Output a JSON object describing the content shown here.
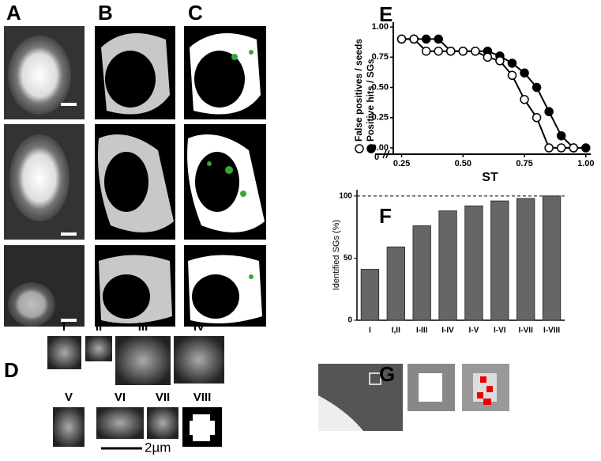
{
  "panel_labels": [
    "A",
    "B",
    "C",
    "D",
    "E",
    "F",
    "G"
  ],
  "granule_labels": [
    "I",
    "II",
    "III",
    "IV",
    "V",
    "VI",
    "VII",
    "VIII"
  ],
  "scale_bar": "2µm",
  "chart_data": [
    {
      "type": "line",
      "xlabel": "ST",
      "x": [
        0.25,
        0.3,
        0.35,
        0.4,
        0.45,
        0.5,
        0.55,
        0.6,
        0.65,
        0.7,
        0.75,
        0.8,
        0.85,
        0.9,
        0.95,
        1.0
      ],
      "series": [
        {
          "name": "Positive hits / SGs",
          "color": "#000000",
          "marker": "filled",
          "values": [
            0.9,
            0.9,
            0.9,
            0.9,
            0.8,
            0.8,
            0.8,
            0.8,
            0.76,
            0.7,
            0.62,
            0.5,
            0.3,
            0.1,
            0,
            0
          ]
        },
        {
          "name": "False positives / seeds",
          "color": "#000000",
          "marker": "open",
          "values": [
            0.9,
            0.9,
            0.8,
            0.8,
            0.8,
            0.8,
            0.8,
            0.75,
            0.72,
            0.6,
            0.4,
            0.25,
            0,
            0,
            0,
            null
          ]
        }
      ],
      "xlim": [
        0.2,
        1.02
      ],
      "ylim": [
        0,
        1.04
      ],
      "xticks": [
        0.25,
        {
          "value": 0.5,
          "label": "0.50"
        },
        0.75,
        {
          "value": 1,
          "label": "1.00"
        }
      ],
      "yticks": [
        {
          "value": 0,
          "label": "0.00"
        },
        0.25,
        {
          "value": 0.5,
          "label": "0.50"
        },
        0.75,
        {
          "value": 1,
          "label": "1.00"
        }
      ],
      "x_break_label": "0"
    },
    {
      "type": "bar",
      "ylabel": "Identified SGs (%)",
      "categories": [
        "I",
        "I,II",
        "I-III",
        "I-IV",
        "I-V",
        "I-VI",
        "I-VII",
        "I-VIII"
      ],
      "values": [
        41,
        59,
        76,
        88,
        92,
        96,
        98,
        100
      ],
      "color": "#666666",
      "ylim": [
        0,
        105
      ],
      "yticks": [
        0,
        50,
        100
      ],
      "reference_line": 100
    }
  ]
}
